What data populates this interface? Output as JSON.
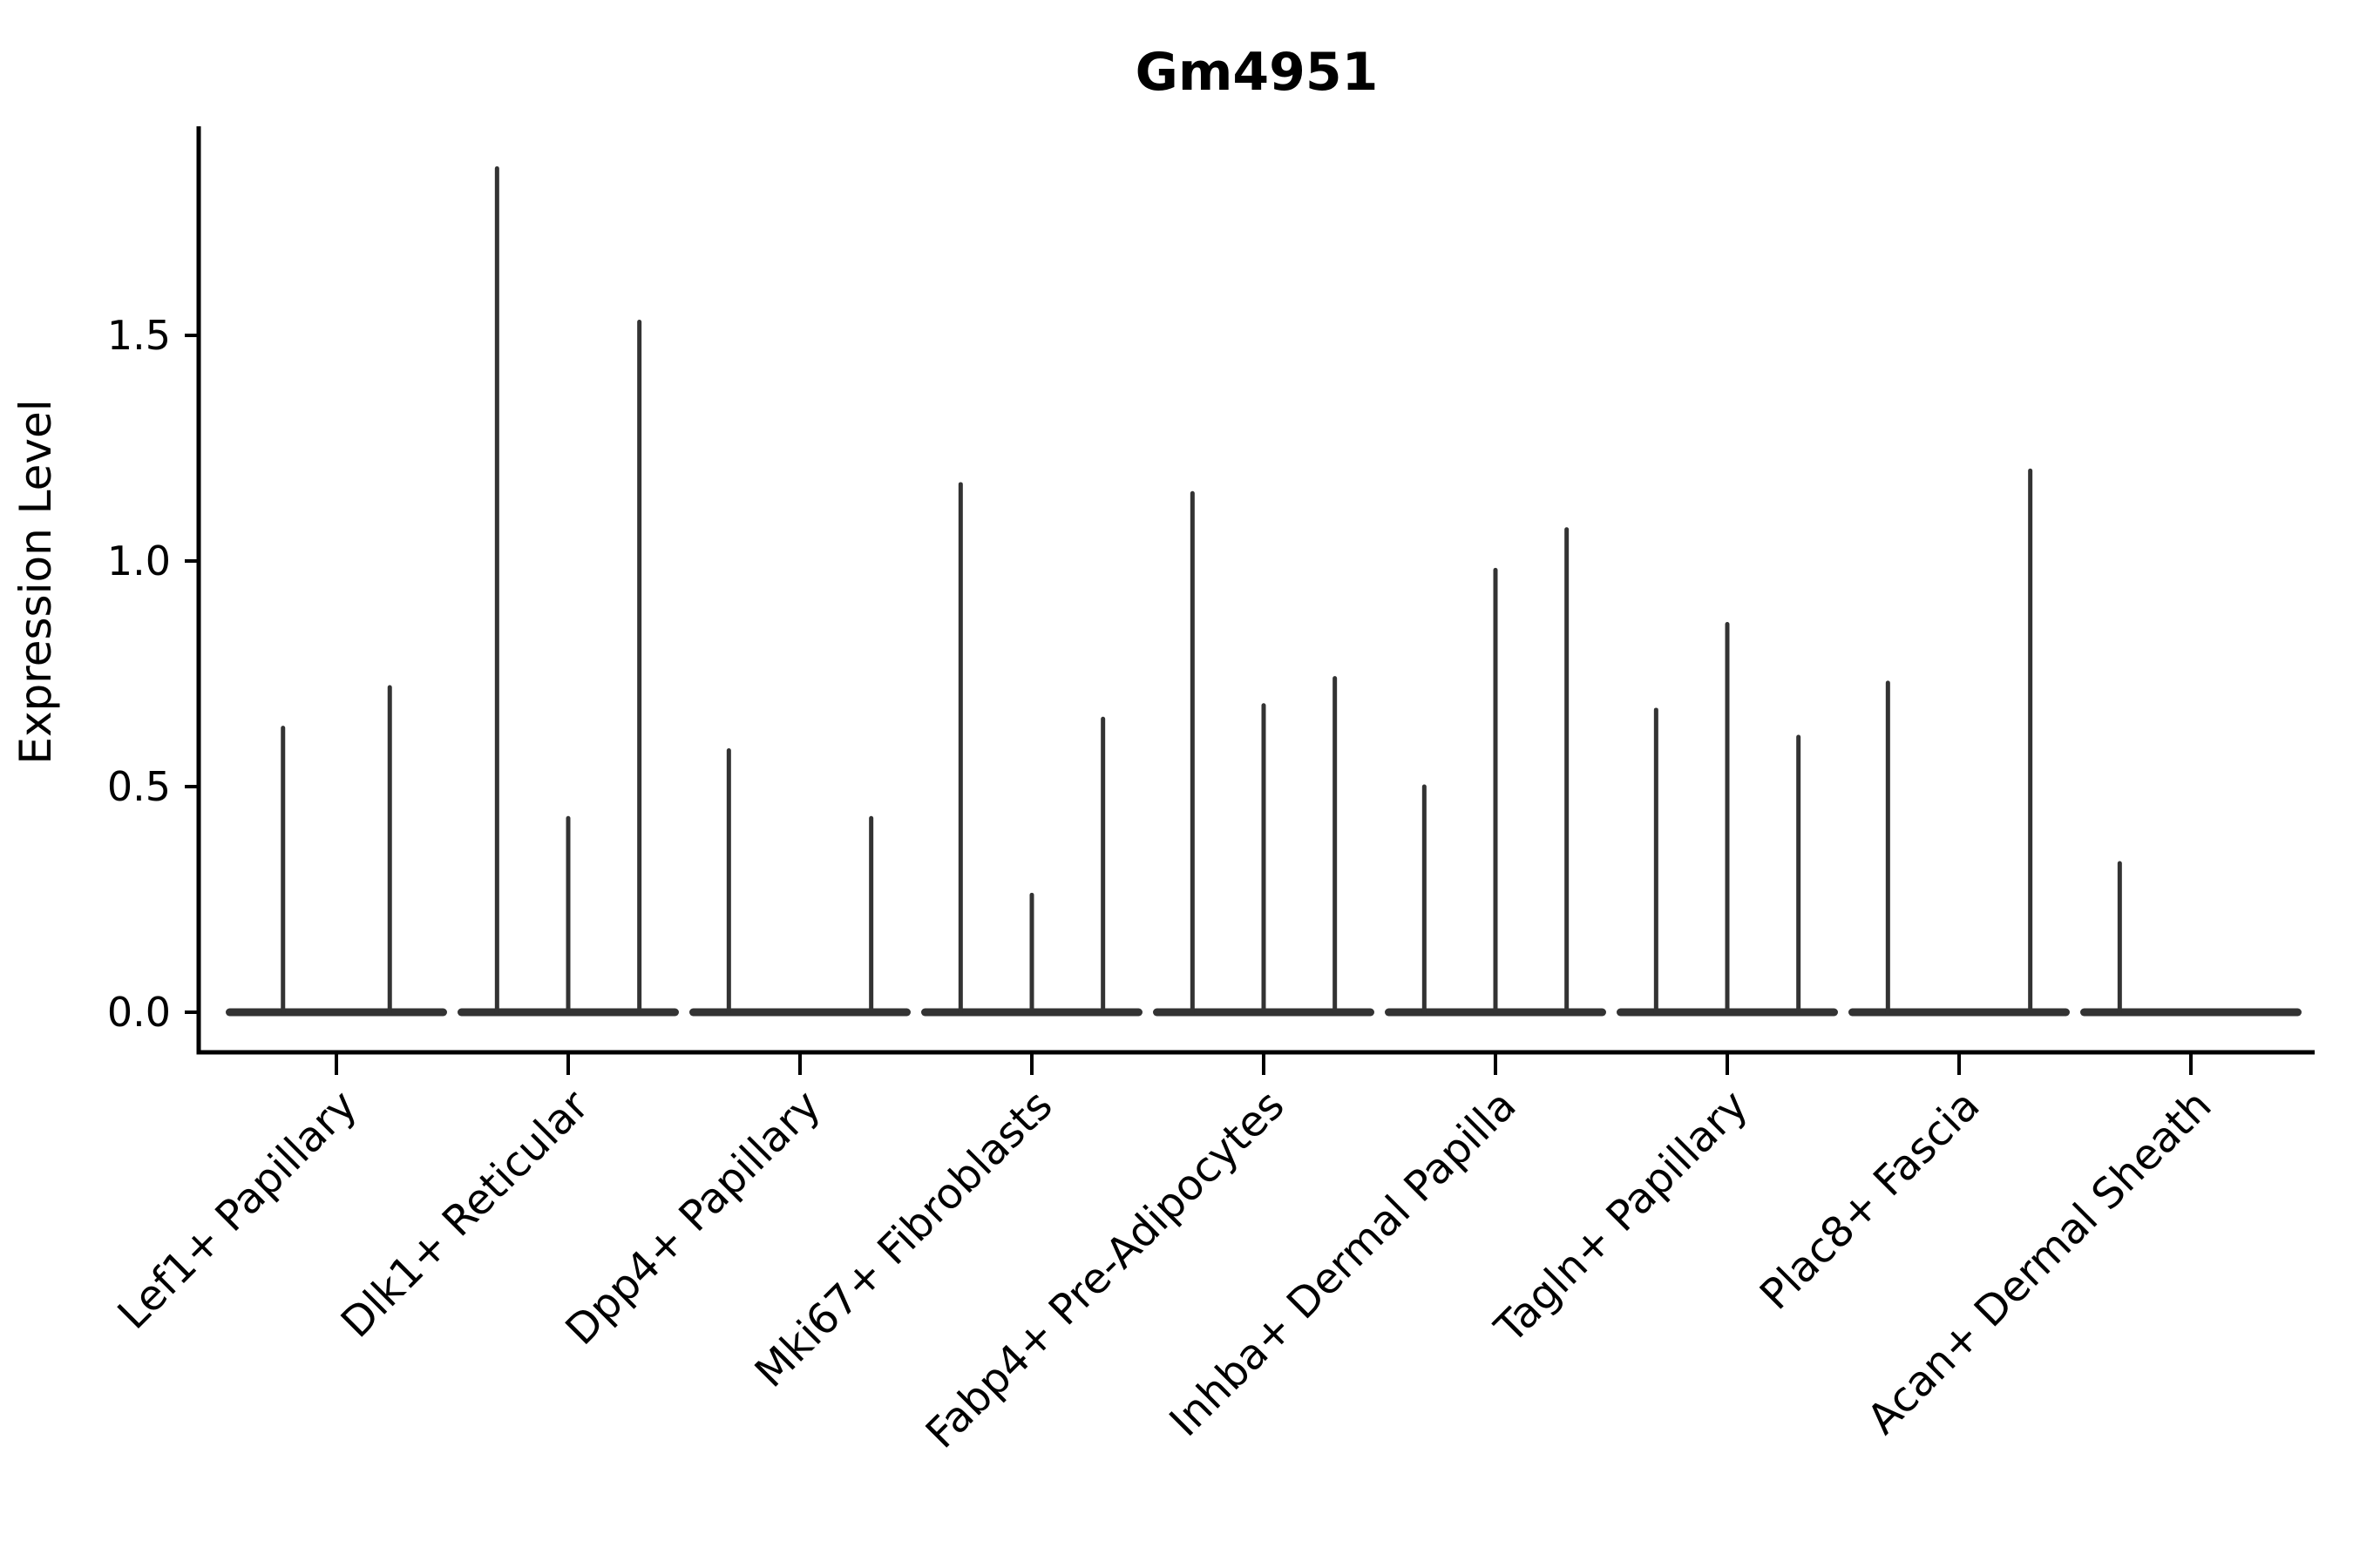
{
  "title": "Gm4951",
  "chart_data": {
    "type": "violin",
    "title": "Gm4951",
    "ylabel": "Expression Level",
    "xlabel": "",
    "ylim": [
      -0.09,
      1.96
    ],
    "yticks": [
      0.0,
      0.5,
      1.0,
      1.5
    ],
    "ytick_labels": [
      "0.0",
      "0.5",
      "1.0",
      "1.5"
    ],
    "grid": false,
    "legend_position": "none",
    "x_tick_rotation": 45,
    "categories": [
      "Lef1+ Papillary",
      "Dlk1+ Reticular",
      "Dpp4+ Papillary",
      "Mki67+ Fibroblasts",
      "Fabp4+ Pre-Adipocytes",
      "Inhba+ Dermal Papilla",
      "Tagln+ Papillary",
      "Plac8+ Fascia",
      "Acan+ Dermal Sheath"
    ],
    "note": "Each category holds 2-3 needle-thin violins; value = spike top (max expression); 0 = flat violin lying on the zero baseline.",
    "violin_maxima": [
      [
        0.63,
        0.72
      ],
      [
        1.87,
        0.43,
        1.53
      ],
      [
        0.58,
        0,
        0.43
      ],
      [
        1.17,
        0.26,
        0.65
      ],
      [
        1.15,
        0.68,
        0.74
      ],
      [
        0.5,
        0.98,
        1.07
      ],
      [
        0.67,
        0.86,
        0.61
      ],
      [
        0.73,
        0,
        1.2
      ],
      [
        0.33,
        0,
        0
      ]
    ],
    "colors": {
      "violin_stroke": "#333333",
      "axis": "#000000",
      "text": "#000000",
      "background": "#ffffff"
    }
  }
}
